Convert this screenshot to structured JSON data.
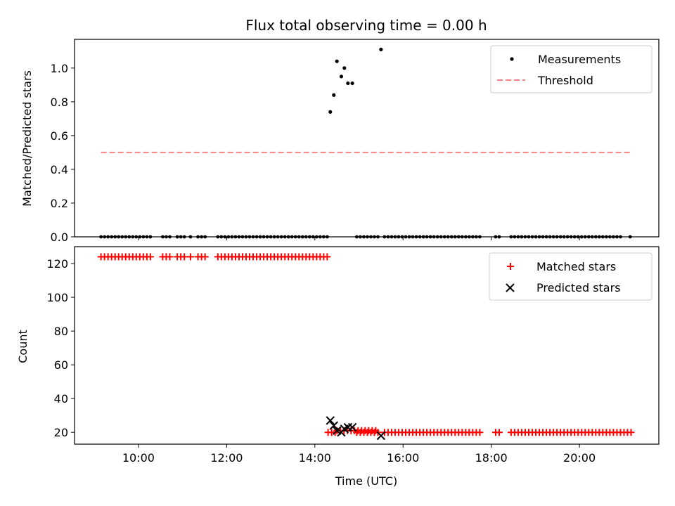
{
  "chart_data": [
    {
      "type": "scatter",
      "title": "Flux total observing time = 0.00 h",
      "xlabel": "",
      "ylabel": "Matched/Predicted stars",
      "xlim": [
        8.55,
        21.8
      ],
      "ylim": [
        0,
        1.17
      ],
      "yticks": [
        0.0,
        0.2,
        0.4,
        0.6,
        0.8,
        1.0
      ],
      "ytick_labels": [
        "0.0",
        "0.2",
        "0.4",
        "0.6",
        "0.8",
        "1.0"
      ],
      "grid": false,
      "legend_position": "top-right",
      "legend": [
        "Measurements",
        "Threshold"
      ],
      "threshold": {
        "name": "Threshold",
        "y": 0.5,
        "x_range": [
          9.15,
          21.2
        ],
        "color": "#ff8080"
      },
      "series": [
        {
          "name": "Measurements",
          "color": "#000000",
          "points": [
            [
              14.35,
              0.74
            ],
            [
              14.43,
              0.84
            ],
            [
              14.5,
              1.04
            ],
            [
              14.6,
              0.95
            ],
            [
              14.67,
              1.0
            ],
            [
              14.75,
              0.91
            ],
            [
              14.85,
              0.91
            ],
            [
              15.5,
              1.11
            ]
          ],
          "zero_ranges": [
            [
              9.15,
              10.28
            ],
            [
              10.55,
              10.78
            ],
            [
              10.88,
              11.05
            ],
            [
              11.18,
              11.25
            ],
            [
              11.35,
              11.55
            ],
            [
              11.8,
              14.28
            ],
            [
              14.95,
              15.45
            ],
            [
              15.58,
              17.8
            ],
            [
              18.1,
              18.25
            ],
            [
              18.45,
              21.0
            ],
            [
              21.15,
              21.2
            ]
          ],
          "zero_step": 0.08
        }
      ]
    },
    {
      "type": "scatter",
      "title": "",
      "xlabel": "Time (UTC)",
      "ylabel": "Count",
      "xlim": [
        8.55,
        21.8
      ],
      "ylim": [
        13,
        130
      ],
      "yticks": [
        20,
        40,
        60,
        80,
        100,
        120
      ],
      "ytick_labels": [
        "20",
        "40",
        "60",
        "80",
        "100",
        "120"
      ],
      "xticks": [
        10,
        12,
        14,
        16,
        18,
        20
      ],
      "xtick_labels": [
        "10:00",
        "12:00",
        "14:00",
        "16:00",
        "18:00",
        "20:00"
      ],
      "grid": false,
      "legend_position": "top-right",
      "legend": [
        "Matched stars",
        "Predicted stars"
      ],
      "series": [
        {
          "name": "Matched stars",
          "color": "#ff0000",
          "marker": "+",
          "groups": [
            {
              "value": 124,
              "ranges": [
                [
                  9.15,
                  10.28
                ],
                [
                  10.55,
                  10.78
                ],
                [
                  10.88,
                  11.05
                ],
                [
                  11.18,
                  11.25
                ],
                [
                  11.35,
                  11.55
                ],
                [
                  11.8,
                  14.3
                ]
              ]
            },
            {
              "value": 20,
              "ranges": [
                [
                  14.3,
                  14.5
                ],
                [
                  14.95,
                  15.45
                ],
                [
                  15.58,
                  17.8
                ],
                [
                  18.1,
                  18.25
                ],
                [
                  18.45,
                  21.2
                ]
              ]
            },
            {
              "value": 21,
              "ranges": [
                [
                  14.5,
                  15.4
                ]
              ]
            }
          ],
          "step": 0.08
        },
        {
          "name": "Predicted stars",
          "color": "#000000",
          "marker": "x",
          "points": [
            [
              14.35,
              27
            ],
            [
              14.43,
              24
            ],
            [
              14.5,
              21
            ],
            [
              14.6,
              20
            ],
            [
              14.67,
              22
            ],
            [
              14.75,
              23
            ],
            [
              14.85,
              23
            ],
            [
              15.5,
              18
            ]
          ]
        }
      ]
    }
  ]
}
